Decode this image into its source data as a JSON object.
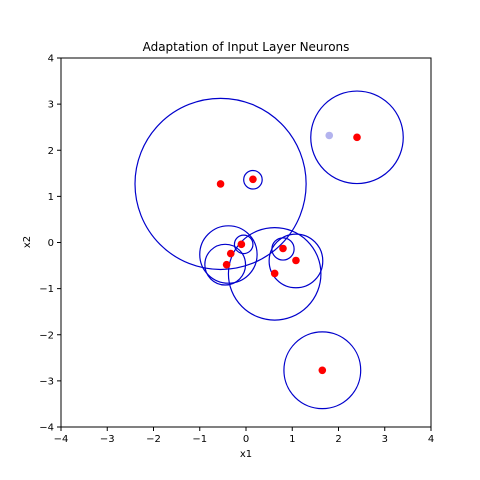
{
  "chart_data": {
    "type": "scatter",
    "title": "Adaptation of Input Layer Neurons",
    "xlabel": "x1",
    "ylabel": "x2",
    "xlim": [
      -4,
      4
    ],
    "ylim": [
      -4,
      4
    ],
    "x_ticks": [
      -4,
      -3,
      -2,
      -1,
      0,
      1,
      2,
      3,
      4
    ],
    "y_ticks": [
      -4,
      -3,
      -2,
      -1,
      0,
      1,
      2,
      3,
      4
    ],
    "x_tick_labels": [
      "−4",
      "−3",
      "−2",
      "−1",
      "0",
      "1",
      "2",
      "3",
      "4"
    ],
    "y_tick_labels": [
      "−4",
      "−3",
      "−2",
      "−1",
      "0",
      "1",
      "2",
      "3",
      "4"
    ],
    "grid": false,
    "legend": "none",
    "series": [
      {
        "marker": "circle-outline",
        "color": "#0000cc",
        "points": [
          {
            "x": -0.55,
            "y": 1.27,
            "r": 1.85
          },
          {
            "x": 2.4,
            "y": 2.28,
            "r": 1.0
          },
          {
            "x": 0.15,
            "y": 1.36,
            "r": 0.2
          },
          {
            "x": -0.05,
            "y": -0.04,
            "r": 0.2
          },
          {
            "x": -0.38,
            "y": -0.26,
            "r": 0.62
          },
          {
            "x": -0.45,
            "y": -0.48,
            "r": 0.44
          },
          {
            "x": 0.62,
            "y": -0.68,
            "r": 1.0
          },
          {
            "x": 0.8,
            "y": -0.14,
            "r": 0.24
          },
          {
            "x": 1.08,
            "y": -0.4,
            "r": 0.58
          },
          {
            "x": 1.65,
            "y": -2.77,
            "r": 0.83
          }
        ]
      },
      {
        "marker": "dot",
        "color": "#ff0000",
        "points": [
          {
            "x": -0.55,
            "y": 1.27
          },
          {
            "x": 2.4,
            "y": 2.28
          },
          {
            "x": 0.15,
            "y": 1.37
          },
          {
            "x": -0.1,
            "y": -0.04
          },
          {
            "x": -0.33,
            "y": -0.24
          },
          {
            "x": -0.42,
            "y": -0.48
          },
          {
            "x": 0.8,
            "y": -0.13
          },
          {
            "x": 1.08,
            "y": -0.39
          },
          {
            "x": 0.62,
            "y": -0.67
          },
          {
            "x": 1.65,
            "y": -2.77
          }
        ]
      },
      {
        "marker": "dot",
        "color": "#b3b3ee",
        "points": [
          {
            "x": 1.8,
            "y": 2.32
          }
        ]
      }
    ]
  }
}
